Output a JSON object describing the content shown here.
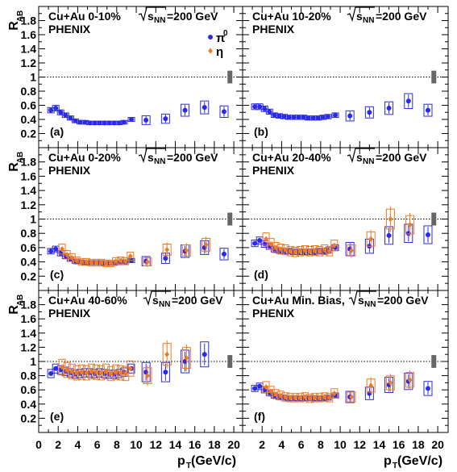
{
  "colors": {
    "pi0": "#2a2ae8",
    "eta": "#f07a1e",
    "sysbox": "#555555"
  },
  "figure": {
    "xlabel": "p",
    "xlabel_sub": "T",
    "xlabel_unit": " (GeV/c)",
    "ylabel": "R",
    "ylabel_sub": "AB"
  },
  "chart_data": [
    {
      "panel": "(a)",
      "system": "Cu+Au",
      "centrality": "0-10%",
      "energy": "=200 GeV",
      "experiment": "PHENIX",
      "type": "scatter",
      "xlim": [
        0,
        21
      ],
      "ylim": [
        0,
        2.0
      ],
      "xticks": [
        0,
        2,
        4,
        6,
        8,
        10,
        12,
        14,
        16,
        18,
        20
      ],
      "yticks": [
        0.2,
        0.4,
        0.6,
        0.8,
        1,
        1.2,
        1.4,
        1.6,
        1.8
      ],
      "legend": [
        {
          "name": "π⁰",
          "symbol": "circle",
          "color": "pi0"
        },
        {
          "name": "η",
          "symbol": "diamond",
          "color": "eta"
        }
      ],
      "series": [
        {
          "name": "π⁰",
          "color": "pi0",
          "symbol": "circle",
          "x": [
            1.25,
            1.75,
            2.25,
            2.75,
            3.25,
            3.75,
            4.25,
            4.75,
            5.25,
            5.75,
            6.25,
            6.75,
            7.25,
            7.75,
            8.25,
            8.75,
            9.5,
            11,
            13,
            15,
            17,
            19
          ],
          "y": [
            0.53,
            0.56,
            0.5,
            0.46,
            0.42,
            0.38,
            0.36,
            0.36,
            0.35,
            0.35,
            0.35,
            0.35,
            0.35,
            0.35,
            0.35,
            0.36,
            0.4,
            0.39,
            0.41,
            0.53,
            0.57,
            0.51
          ]
        }
      ]
    },
    {
      "panel": "(b)",
      "system": "Cu+Au",
      "centrality": "10-20%",
      "energy": "=200 GeV",
      "experiment": "",
      "type": "scatter",
      "xlim": [
        0,
        21
      ],
      "ylim": [
        0,
        2.0
      ],
      "xticks": [
        0,
        2,
        4,
        6,
        8,
        10,
        12,
        14,
        16,
        18,
        20
      ],
      "yticks": [
        0.2,
        0.4,
        0.6,
        0.8,
        1,
        1.2,
        1.4,
        1.6,
        1.8
      ],
      "series": [
        {
          "name": "π⁰",
          "color": "pi0",
          "symbol": "circle",
          "x": [
            1.25,
            1.75,
            2.25,
            2.75,
            3.25,
            3.75,
            4.25,
            4.75,
            5.25,
            5.75,
            6.25,
            6.75,
            7.25,
            7.75,
            8.25,
            8.75,
            9.5,
            11,
            13,
            15,
            17,
            19
          ],
          "y": [
            0.58,
            0.58,
            0.55,
            0.51,
            0.46,
            0.45,
            0.44,
            0.43,
            0.43,
            0.43,
            0.43,
            0.42,
            0.42,
            0.42,
            0.43,
            0.44,
            0.46,
            0.45,
            0.5,
            0.56,
            0.66,
            0.53
          ]
        }
      ]
    },
    {
      "panel": "(c)",
      "system": "Cu+Au",
      "centrality": "0-20%",
      "energy": "=200 GeV",
      "experiment": "PHENIX",
      "type": "scatter",
      "xlim": [
        0,
        21
      ],
      "ylim": [
        0,
        2.0
      ],
      "xticks": [
        0,
        2,
        4,
        6,
        8,
        10,
        12,
        14,
        16,
        18,
        20
      ],
      "yticks": [
        0.2,
        0.4,
        0.6,
        0.8,
        1,
        1.2,
        1.4,
        1.6,
        1.8
      ],
      "series": [
        {
          "name": "π⁰",
          "color": "pi0",
          "symbol": "circle",
          "x": [
            1.25,
            1.75,
            2.25,
            2.75,
            3.25,
            3.75,
            4.25,
            4.75,
            5.25,
            5.75,
            6.25,
            6.75,
            7.25,
            7.75,
            8.25,
            8.75,
            9.5,
            11,
            13,
            15,
            17,
            19
          ],
          "y": [
            0.55,
            0.58,
            0.52,
            0.48,
            0.44,
            0.41,
            0.4,
            0.39,
            0.39,
            0.39,
            0.39,
            0.38,
            0.38,
            0.38,
            0.39,
            0.4,
            0.42,
            0.41,
            0.45,
            0.55,
            0.6,
            0.51
          ]
        },
        {
          "name": "η",
          "color": "eta",
          "symbol": "diamond",
          "x": [
            2.25,
            2.75,
            3.25,
            3.75,
            4.25,
            4.75,
            5.25,
            5.75,
            6.25,
            6.75,
            7.25,
            7.75,
            8.25,
            8.75,
            9.25,
            11,
            13,
            15,
            17
          ],
          "y": [
            0.58,
            0.5,
            0.46,
            0.42,
            0.4,
            0.4,
            0.39,
            0.39,
            0.39,
            0.38,
            0.38,
            0.41,
            0.42,
            0.41,
            0.48,
            0.4,
            0.57,
            0.56,
            0.64
          ]
        }
      ]
    },
    {
      "panel": "(d)",
      "system": "Cu+Au",
      "centrality": "20-40%",
      "energy": "=200 GeV",
      "experiment": "PHENIX",
      "type": "scatter",
      "xlim": [
        0,
        21
      ],
      "ylim": [
        0,
        2.0
      ],
      "xticks": [
        0,
        2,
        4,
        6,
        8,
        10,
        12,
        14,
        16,
        18,
        20
      ],
      "yticks": [
        0.2,
        0.4,
        0.6,
        0.8,
        1,
        1.2,
        1.4,
        1.6,
        1.8
      ],
      "series": [
        {
          "name": "π⁰",
          "color": "pi0",
          "symbol": "circle",
          "x": [
            1.25,
            1.75,
            2.25,
            2.75,
            3.25,
            3.75,
            4.25,
            4.75,
            5.25,
            5.75,
            6.25,
            6.75,
            7.25,
            7.75,
            8.25,
            8.75,
            9.5,
            11,
            13,
            15,
            17,
            19
          ],
          "y": [
            0.66,
            0.7,
            0.65,
            0.62,
            0.58,
            0.56,
            0.55,
            0.55,
            0.54,
            0.54,
            0.54,
            0.54,
            0.54,
            0.55,
            0.55,
            0.56,
            0.6,
            0.58,
            0.62,
            0.77,
            0.8,
            0.78
          ]
        },
        {
          "name": "η",
          "color": "eta",
          "symbol": "diamond",
          "x": [
            2.25,
            2.75,
            3.25,
            3.75,
            4.25,
            4.75,
            5.25,
            5.75,
            6.25,
            6.75,
            7.25,
            7.75,
            8.25,
            8.75,
            9.25,
            11,
            13,
            15,
            17
          ],
          "y": [
            0.72,
            0.65,
            0.6,
            0.58,
            0.57,
            0.55,
            0.54,
            0.55,
            0.56,
            0.55,
            0.56,
            0.55,
            0.57,
            0.55,
            0.63,
            0.56,
            0.72,
            1.0,
            0.92
          ]
        }
      ]
    },
    {
      "panel": "(e)",
      "system": "Cu+Au",
      "centrality": "40-60%",
      "energy": "=200 GeV",
      "experiment": "PHENIX",
      "type": "scatter",
      "xlim": [
        0,
        21
      ],
      "ylim": [
        0,
        2.0
      ],
      "xticks": [
        0,
        2,
        4,
        6,
        8,
        10,
        12,
        14,
        16,
        18,
        20
      ],
      "yticks": [
        0.2,
        0.4,
        0.6,
        0.8,
        1,
        1.2,
        1.4,
        1.6,
        1.8
      ],
      "series": [
        {
          "name": "π⁰",
          "color": "pi0",
          "symbol": "circle",
          "x": [
            1.25,
            1.75,
            2.25,
            2.75,
            3.25,
            3.75,
            4.25,
            4.75,
            5.25,
            5.75,
            6.25,
            6.75,
            7.25,
            7.75,
            8.25,
            8.75,
            9.5,
            11,
            13,
            15,
            17
          ],
          "y": [
            0.83,
            0.9,
            0.88,
            0.86,
            0.84,
            0.82,
            0.83,
            0.84,
            0.84,
            0.83,
            0.84,
            0.83,
            0.82,
            0.82,
            0.83,
            0.85,
            0.9,
            0.85,
            0.85,
            1.0,
            1.1
          ]
        },
        {
          "name": "η",
          "color": "eta",
          "symbol": "diamond",
          "x": [
            2.25,
            2.75,
            3.25,
            3.75,
            4.25,
            4.75,
            5.25,
            5.75,
            6.25,
            6.75,
            7.25,
            7.75,
            8.25,
            8.75,
            9.25,
            11,
            13,
            15
          ],
          "y": [
            0.92,
            0.88,
            0.86,
            0.84,
            0.85,
            0.84,
            0.86,
            0.85,
            0.84,
            0.86,
            0.83,
            0.85,
            0.84,
            0.83,
            0.9,
            0.8,
            1.1,
            1.05
          ]
        }
      ]
    },
    {
      "panel": "(f)",
      "system": "Cu+Au",
      "centrality": "Min. Bias,",
      "energy": "=200 GeV",
      "experiment": "PHENIX",
      "type": "scatter",
      "xlim": [
        0,
        21
      ],
      "ylim": [
        0,
        2.0
      ],
      "xticks": [
        0,
        2,
        4,
        6,
        8,
        10,
        12,
        14,
        16,
        18,
        20
      ],
      "yticks": [
        0.2,
        0.4,
        0.6,
        0.8,
        1,
        1.2,
        1.4,
        1.6,
        1.8
      ],
      "series": [
        {
          "name": "π⁰",
          "color": "pi0",
          "symbol": "circle",
          "x": [
            1.25,
            1.75,
            2.25,
            2.75,
            3.25,
            3.75,
            4.25,
            4.75,
            5.25,
            5.75,
            6.25,
            6.75,
            7.25,
            7.75,
            8.25,
            8.75,
            9.5,
            11,
            13,
            15,
            17,
            19
          ],
          "y": [
            0.62,
            0.65,
            0.6,
            0.56,
            0.52,
            0.5,
            0.49,
            0.48,
            0.48,
            0.48,
            0.48,
            0.48,
            0.48,
            0.48,
            0.48,
            0.49,
            0.52,
            0.5,
            0.55,
            0.67,
            0.72,
            0.62
          ]
        },
        {
          "name": "η",
          "color": "eta",
          "symbol": "diamond",
          "x": [
            2.25,
            2.75,
            3.25,
            3.75,
            4.25,
            4.75,
            5.25,
            5.75,
            6.25,
            6.75,
            7.25,
            7.75,
            8.25,
            8.75,
            9.25,
            11,
            13,
            15,
            17
          ],
          "y": [
            0.64,
            0.58,
            0.54,
            0.52,
            0.5,
            0.49,
            0.49,
            0.49,
            0.5,
            0.48,
            0.49,
            0.49,
            0.5,
            0.49,
            0.55,
            0.5,
            0.66,
            0.7,
            0.74
          ]
        }
      ]
    }
  ]
}
